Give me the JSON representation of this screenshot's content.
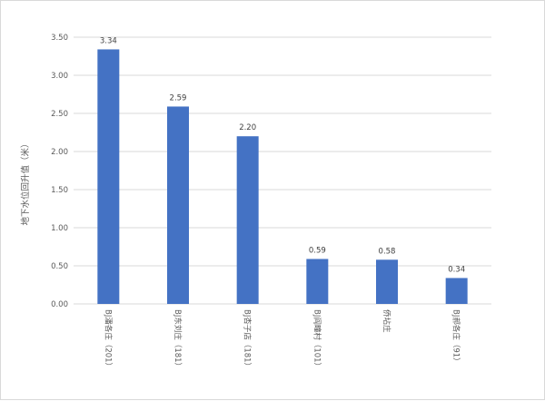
{
  "chart_data": {
    "type": "bar",
    "ylabel": "地下水位回升值（米）",
    "ylim": [
      0,
      3.5
    ],
    "yticks": [
      "0.00",
      "0.50",
      "1.00",
      "1.50",
      "2.00",
      "2.50",
      "3.00",
      "3.50"
    ],
    "grid": true,
    "categories": [
      "BJ潘各庄（201）",
      "BJ东刘庄（181）",
      "BJ杏子店（181）",
      "BJ阎疃村（101）",
      "侨坫庄",
      "BJ郝各庄（91）"
    ],
    "values": [
      3.34,
      2.59,
      2.2,
      0.59,
      0.58,
      0.34
    ],
    "data_labels": [
      "3.34",
      "2.59",
      "2.20",
      "0.59",
      "0.58",
      "0.34"
    ],
    "bar_color": "#4472C4",
    "grid_color": "#d9d9d9"
  }
}
